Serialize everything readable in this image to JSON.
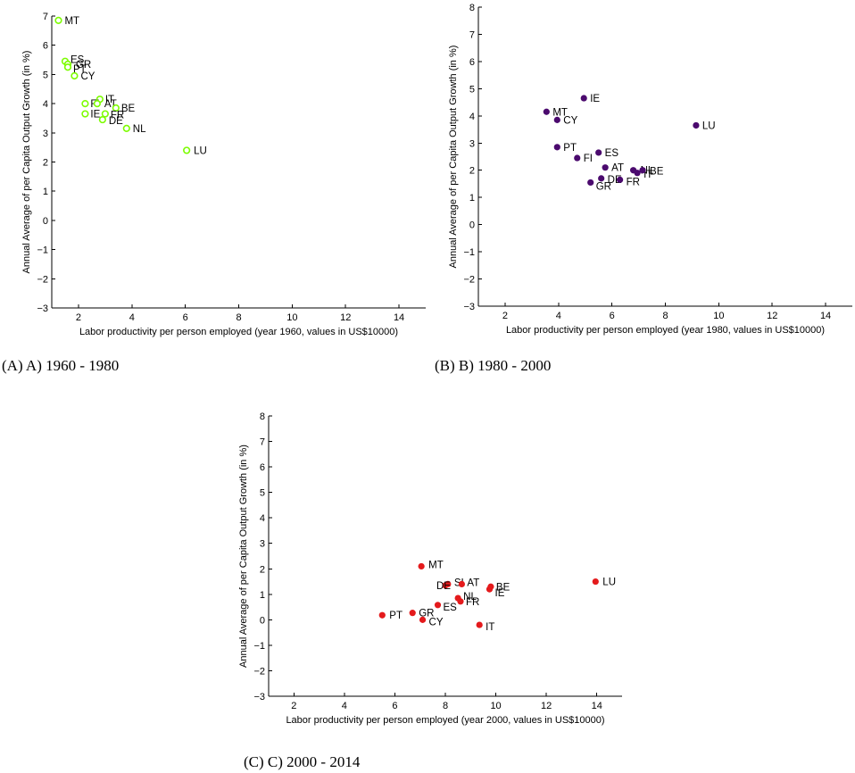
{
  "chart_data": [
    {
      "type": "scatter",
      "caption": "(A) A) 1960 - 1980",
      "xlabel": "Labor productivity per person employed (year 1960, values in US$10000)",
      "ylabel": "Annual Average of per Capita Output Growth (in %)",
      "xlim": [
        1,
        15
      ],
      "ylim": [
        -3,
        7
      ],
      "xticks": [
        2,
        4,
        6,
        8,
        10,
        12,
        14
      ],
      "yticks": [
        -3,
        -2,
        -1,
        0,
        1,
        2,
        3,
        4,
        5,
        6,
        7
      ],
      "grid": false,
      "marker_style": "hollow",
      "color": "#7CFC00",
      "points": [
        {
          "label": "MT",
          "x": 1.25,
          "y": 6.85
        },
        {
          "label": "ES",
          "x": 1.5,
          "y": 5.45
        },
        {
          "label": "GR",
          "x": 1.6,
          "y": 5.35
        },
        {
          "label": "PT",
          "x": 1.6,
          "y": 5.25
        },
        {
          "label": "CY",
          "x": 1.85,
          "y": 4.95
        },
        {
          "label": "IT",
          "x": 2.8,
          "y": 4.15
        },
        {
          "label": "FI",
          "x": 2.25,
          "y": 4.0
        },
        {
          "label": "AT",
          "x": 2.7,
          "y": 4.0
        },
        {
          "label": "BE",
          "x": 3.4,
          "y": 3.85
        },
        {
          "label": "IE",
          "x": 2.25,
          "y": 3.65
        },
        {
          "label": "FR",
          "x": 3.0,
          "y": 3.65
        },
        {
          "label": "DE",
          "x": 2.9,
          "y": 3.45
        },
        {
          "label": "NL",
          "x": 3.8,
          "y": 3.15
        },
        {
          "label": "LU",
          "x": 6.05,
          "y": 2.4
        }
      ]
    },
    {
      "type": "scatter",
      "caption": "(B) B) 1980 - 2000",
      "xlabel": "Labor productivity per person employed (year 1980, values in US$10000)",
      "ylabel": "Annual Average of per Capita Output Growth (in %)",
      "xlim": [
        1,
        15
      ],
      "ylim": [
        -3,
        8
      ],
      "xticks": [
        2,
        4,
        6,
        8,
        10,
        12,
        14
      ],
      "yticks": [
        -3,
        -2,
        -1,
        0,
        1,
        2,
        3,
        4,
        5,
        6,
        7,
        8
      ],
      "grid": false,
      "marker_style": "filled",
      "color": "#4B0A6E",
      "points": [
        {
          "label": "IE",
          "x": 4.95,
          "y": 4.65
        },
        {
          "label": "MT",
          "x": 3.55,
          "y": 4.15
        },
        {
          "label": "CY",
          "x": 3.95,
          "y": 3.85
        },
        {
          "label": "LU",
          "x": 9.15,
          "y": 3.65
        },
        {
          "label": "PT",
          "x": 3.95,
          "y": 2.85
        },
        {
          "label": "ES",
          "x": 5.5,
          "y": 2.65
        },
        {
          "label": "FI",
          "x": 4.7,
          "y": 2.45
        },
        {
          "label": "AT",
          "x": 5.75,
          "y": 2.1
        },
        {
          "label": "NL",
          "x": 6.8,
          "y": 2.0
        },
        {
          "label": "IT",
          "x": 6.95,
          "y": 1.9
        },
        {
          "label": "BE",
          "x": 7.15,
          "y": 2.0
        },
        {
          "label": "DE",
          "x": 5.6,
          "y": 1.7
        },
        {
          "label": "FR",
          "x": 6.3,
          "y": 1.65
        },
        {
          "label": "GR",
          "x": 5.2,
          "y": 1.55
        }
      ]
    },
    {
      "type": "scatter",
      "caption": "(C) C) 2000 - 2014",
      "xlabel": "Labor productivity per person employed (year 2000, values in US$10000)",
      "ylabel": "Annual Average of per Capita Output Growth (in %)",
      "xlim": [
        1,
        15
      ],
      "ylim": [
        -3,
        8
      ],
      "xticks": [
        2,
        4,
        6,
        8,
        10,
        12,
        14
      ],
      "yticks": [
        -3,
        -2,
        -1,
        0,
        1,
        2,
        3,
        4,
        5,
        6,
        7,
        8
      ],
      "grid": false,
      "marker_style": "filled",
      "color": "#E41A1C",
      "points": [
        {
          "label": "MT",
          "x": 7.05,
          "y": 2.1
        },
        {
          "label": "LU",
          "x": 13.95,
          "y": 1.5
        },
        {
          "label": "SI",
          "x": 8.1,
          "y": 1.4
        },
        {
          "label": "AT",
          "x": 8.65,
          "y": 1.4
        },
        {
          "label": "DE",
          "x": 8.0,
          "y": 1.35
        },
        {
          "label": "BE",
          "x": 9.8,
          "y": 1.3
        },
        {
          "label": "IE",
          "x": 9.75,
          "y": 1.2
        },
        {
          "label": "NL",
          "x": 8.5,
          "y": 0.85
        },
        {
          "label": "FR",
          "x": 8.6,
          "y": 0.72
        },
        {
          "label": "ES",
          "x": 7.7,
          "y": 0.58
        },
        {
          "label": "GR",
          "x": 6.7,
          "y": 0.27
        },
        {
          "label": "PT",
          "x": 5.5,
          "y": 0.18
        },
        {
          "label": "CY",
          "x": 7.1,
          "y": 0.0
        },
        {
          "label": "IT",
          "x": 9.35,
          "y": -0.2
        }
      ]
    }
  ]
}
